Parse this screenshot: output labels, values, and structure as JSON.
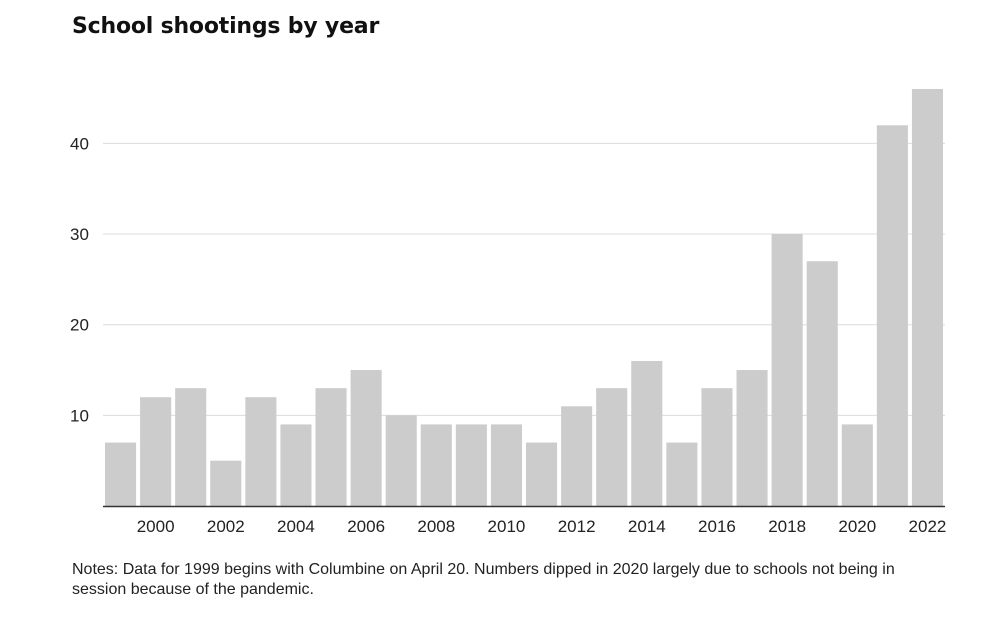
{
  "chart_data": {
    "type": "bar",
    "title": "School shootings by year",
    "xlabel": "",
    "ylabel": "",
    "categories": [
      "1999",
      "2000",
      "2001",
      "2002",
      "2003",
      "2004",
      "2005",
      "2006",
      "2007",
      "2008",
      "2009",
      "2010",
      "2011",
      "2012",
      "2013",
      "2014",
      "2015",
      "2016",
      "2017",
      "2018",
      "2019",
      "2020",
      "2021",
      "2022"
    ],
    "values": [
      7,
      12,
      13,
      5,
      12,
      9,
      13,
      15,
      10,
      9,
      9,
      9,
      7,
      11,
      13,
      16,
      7,
      13,
      15,
      30,
      27,
      9,
      42,
      46
    ],
    "ylim": [
      0,
      46
    ],
    "yticks": [
      10,
      20,
      30,
      40
    ],
    "xticks": [
      "2000",
      "2002",
      "2004",
      "2006",
      "2008",
      "2010",
      "2012",
      "2014",
      "2016",
      "2018",
      "2020",
      "2022"
    ],
    "grid": true,
    "legend": "none",
    "bar_color": "#cccccc",
    "notes": "Notes: Data for 1999 begins with Columbine on April 20. Numbers dipped in 2020 largely due to schools not being in session because of the pandemic."
  }
}
